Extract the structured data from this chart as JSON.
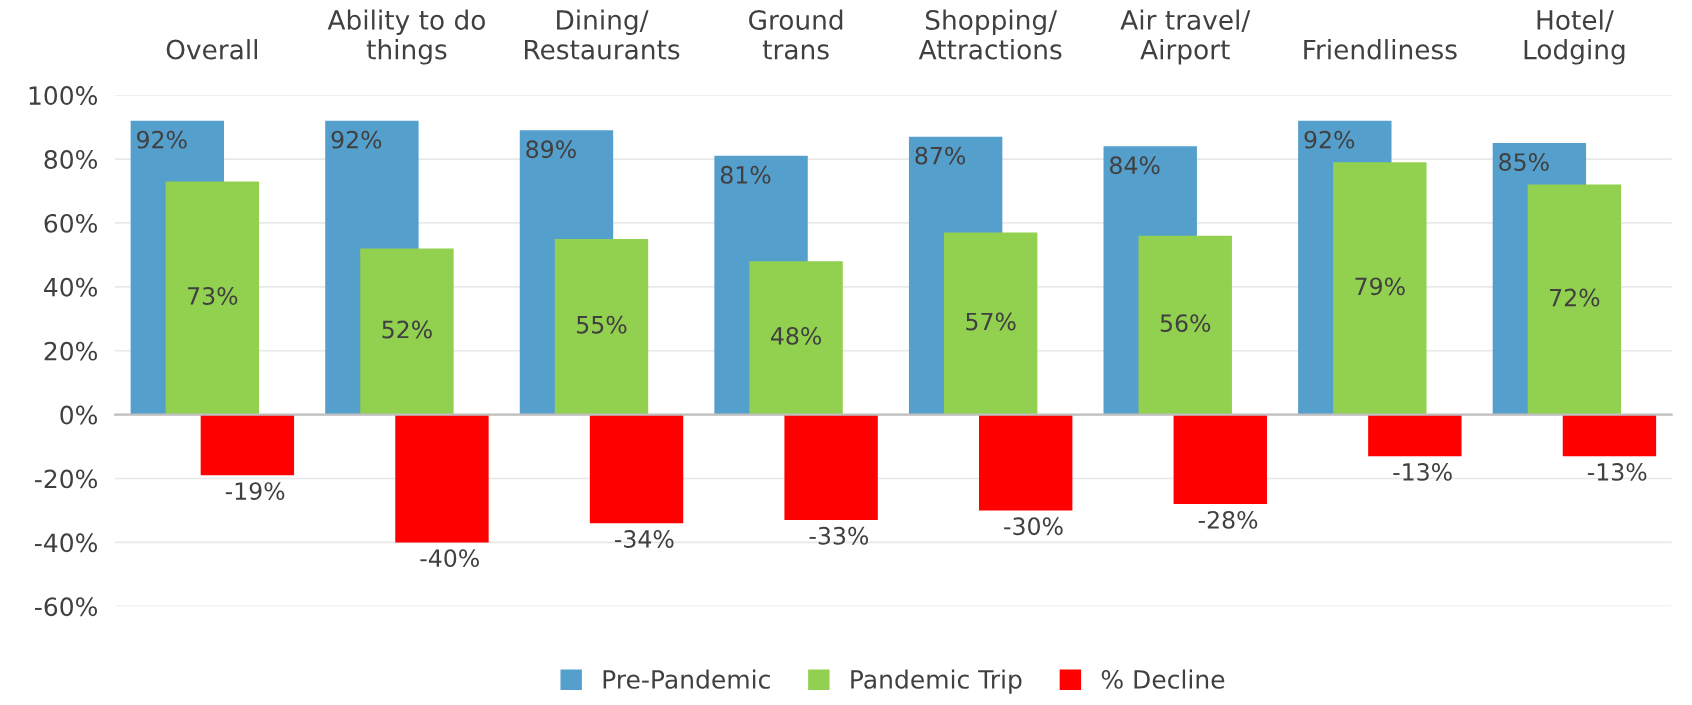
{
  "chart_data": {
    "type": "bar",
    "categories": [
      "Overall",
      "Ability to do\nthings",
      "Dining/\nRestaurants",
      "Ground\ntrans",
      "Shopping/\nAttractions",
      "Air travel/\nAirport",
      "Friendliness",
      "Hotel/\nLodging"
    ],
    "series": [
      {
        "name": "Pre-Pandemic",
        "color": "#559fcd",
        "values": [
          92,
          92,
          89,
          81,
          87,
          84,
          92,
          85
        ],
        "value_labels": [
          "92%",
          "92%",
          "89%",
          "81%",
          "87%",
          "84%",
          "92%",
          "85%"
        ]
      },
      {
        "name": "Pandemic Trip",
        "color": "#92d050",
        "values": [
          73,
          52,
          55,
          48,
          57,
          56,
          79,
          72
        ],
        "value_labels": [
          "73%",
          "52%",
          "55%",
          "48%",
          "57%",
          "56%",
          "79%",
          "72%"
        ]
      },
      {
        "name": "% Decline",
        "color": "#ff0000",
        "values": [
          -19,
          -40,
          -34,
          -33,
          -30,
          -28,
          -13,
          -13
        ],
        "value_labels": [
          "-19%",
          "-40%",
          "-34%",
          "-33%",
          "-30%",
          "-28%",
          "-13%",
          "-13%"
        ]
      }
    ],
    "ylim": [
      -60,
      100
    ],
    "yticks": [
      {
        "value": -60,
        "label": "-60%"
      },
      {
        "value": -40,
        "label": "-40%"
      },
      {
        "value": -20,
        "label": "-20%"
      },
      {
        "value": 0,
        "label": "0%"
      },
      {
        "value": 20,
        "label": "20%"
      },
      {
        "value": 40,
        "label": "40%"
      },
      {
        "value": 60,
        "label": "60%"
      },
      {
        "value": 80,
        "label": "80%"
      },
      {
        "value": 100,
        "label": "100%"
      }
    ],
    "grid": "y",
    "legend": "bottom"
  }
}
